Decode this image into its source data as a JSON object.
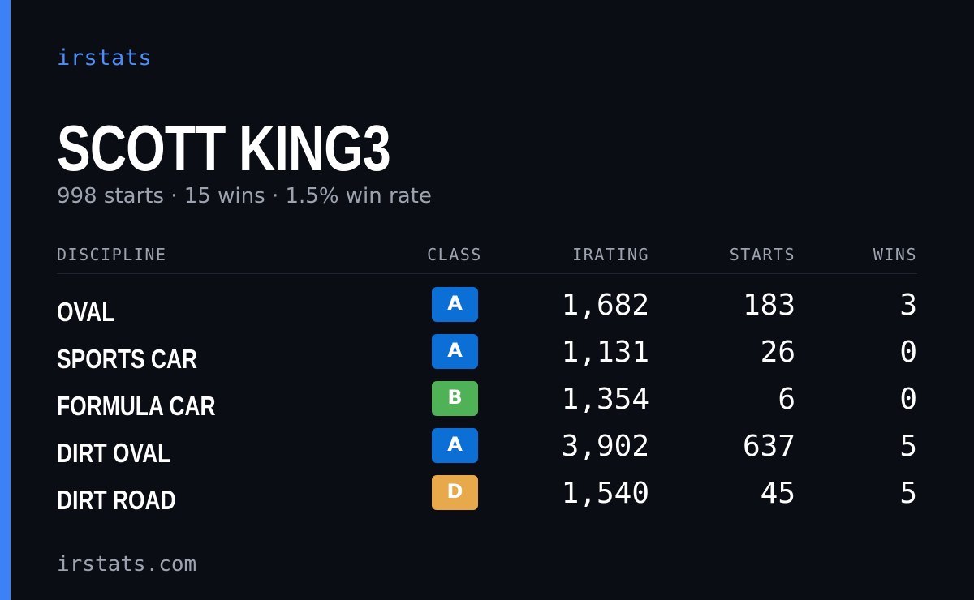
{
  "brand": "irstats",
  "driver": {
    "name": "SCOTT KING3",
    "summary": {
      "starts": "998 starts",
      "wins": "15 wins",
      "win_rate": "1.5% win rate",
      "separator": "·"
    }
  },
  "table": {
    "headers": {
      "discipline": "DISCIPLINE",
      "class": "CLASS",
      "irating": "IRATING",
      "starts": "STARTS",
      "wins": "WINS"
    },
    "rows": [
      {
        "discipline": "OVAL",
        "class": "A",
        "class_color": "#0b6fd6",
        "irating": "1,682",
        "starts": "183",
        "wins": "3"
      },
      {
        "discipline": "SPORTS CAR",
        "class": "A",
        "class_color": "#0b6fd6",
        "irating": "1,131",
        "starts": "26",
        "wins": "0"
      },
      {
        "discipline": "FORMULA CAR",
        "class": "B",
        "class_color": "#4fb257",
        "irating": "1,354",
        "starts": "6",
        "wins": "0"
      },
      {
        "discipline": "DIRT OVAL",
        "class": "A",
        "class_color": "#0b6fd6",
        "irating": "3,902",
        "starts": "637",
        "wins": "5"
      },
      {
        "discipline": "DIRT ROAD",
        "class": "D",
        "class_color": "#e8a94a",
        "irating": "1,540",
        "starts": "45",
        "wins": "5"
      }
    ]
  },
  "footer": "irstats.com",
  "colors": {
    "background": "#0a0d14",
    "accent": "#3b82f6",
    "brand_text": "#4f8df7",
    "muted_text": "#9ca3af"
  }
}
